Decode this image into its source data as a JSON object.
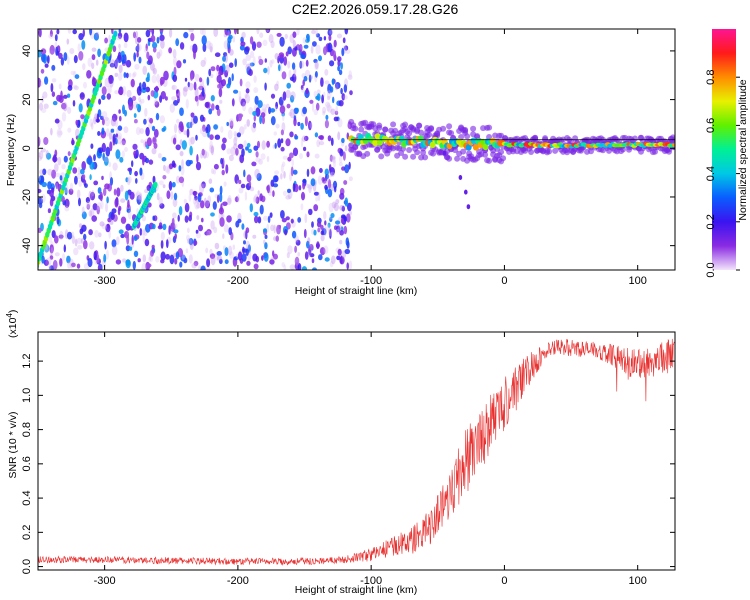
{
  "page_title": "C2E2.2026.059.17.28.G26",
  "chart_data": [
    {
      "type": "heatmap",
      "title": "C2E2.2026.059.17.28.G26",
      "xlabel": "Height of straight line (km)",
      "ylabel": "Frequency (Hz)",
      "xlim": [
        -350,
        128
      ],
      "ylim": [
        -50,
        49
      ],
      "xticks": [
        -300,
        -200,
        -100,
        0,
        100
      ],
      "xtick_labels": [
        "-300",
        "-200",
        "-100",
        "0",
        "100"
      ],
      "yticks": [
        -40,
        -20,
        0,
        20,
        40
      ],
      "ytick_labels": [
        "-40",
        "-20",
        "0",
        "20",
        "40"
      ],
      "colorbar": {
        "label": "Normalized spectral amplitude",
        "range": [
          0,
          1
        ],
        "ticks": [
          0.0,
          0.2,
          0.4,
          0.6,
          0.8
        ],
        "tick_labels": [
          "0.0",
          "0.2",
          "0.4",
          "0.6",
          "0.8"
        ],
        "colors": [
          "#f2e4fb",
          "#8a2be2",
          "#3a14f0",
          "#0a5cff",
          "#00c8e6",
          "#00f096",
          "#60f000",
          "#e8f000",
          "#ff8c00",
          "#ff1a1a",
          "#ff1493"
        ]
      },
      "features": {
        "noise_region_x": [
          -350,
          -115
        ],
        "noise_density": 0.35,
        "signal_line": [
          [
            -115,
            4
          ],
          [
            -80,
            3
          ],
          [
            -40,
            2
          ],
          [
            0,
            1.5
          ],
          [
            50,
            1.2
          ],
          [
            128,
            1.5
          ]
        ],
        "steep_streaks": [
          {
            "x": [
              -352,
              -292
            ],
            "y": [
              -50,
              47
            ],
            "amplitude": 0.55
          },
          {
            "x": [
              -278,
              -262
            ],
            "y": [
              -32,
              -15
            ],
            "amplitude": 0.45
          }
        ],
        "dropouts": [
          [
            -45,
            -2
          ],
          [
            -33,
            -12
          ],
          [
            -29,
            -18
          ],
          [
            -27,
            -24
          ]
        ]
      }
    },
    {
      "type": "line",
      "title": "",
      "xlabel": "Height of straight line (km)",
      "ylabel": "SNR (10 * v/v)",
      "ylabel_multiplier": "(x10",
      "ylabel_multiplier_exp": "4",
      "ylabel_multiplier_close": ")",
      "xlim": [
        -350,
        128
      ],
      "ylim": [
        -0.02,
        1.37
      ],
      "xticks": [
        -300,
        -200,
        -100,
        0,
        100
      ],
      "xtick_labels": [
        "-300",
        "-200",
        "-100",
        "0",
        "100"
      ],
      "yticks": [
        0.0,
        0.2,
        0.4,
        0.6,
        0.8,
        1.0,
        1.2
      ],
      "ytick_labels": [
        "0.0",
        "0.2",
        "0.4",
        "0.6",
        "0.8",
        "1.0",
        "1.2"
      ],
      "color": "#e8302f",
      "series": [
        {
          "name": "SNR",
          "x": [
            -350,
            -300,
            -250,
            -200,
            -150,
            -120,
            -100,
            -90,
            -80,
            -70,
            -60,
            -50,
            -40,
            -30,
            -20,
            -10,
            0,
            10,
            20,
            30,
            40,
            50,
            60,
            70,
            80,
            90,
            100,
            110,
            120,
            128
          ],
          "y": [
            0.04,
            0.04,
            0.035,
            0.03,
            0.03,
            0.04,
            0.07,
            0.1,
            0.13,
            0.15,
            0.2,
            0.3,
            0.45,
            0.6,
            0.72,
            0.85,
            0.95,
            1.05,
            1.17,
            1.25,
            1.28,
            1.28,
            1.27,
            1.26,
            1.24,
            1.2,
            1.18,
            1.2,
            1.22,
            1.24
          ],
          "noise": [
            0.02,
            0.02,
            0.02,
            0.02,
            0.02,
            0.02,
            0.04,
            0.05,
            0.06,
            0.08,
            0.1,
            0.13,
            0.16,
            0.2,
            0.2,
            0.18,
            0.16,
            0.13,
            0.1,
            0.05,
            0.05,
            0.05,
            0.05,
            0.05,
            0.06,
            0.08,
            0.09,
            0.1,
            0.1,
            0.1
          ]
        }
      ]
    }
  ]
}
